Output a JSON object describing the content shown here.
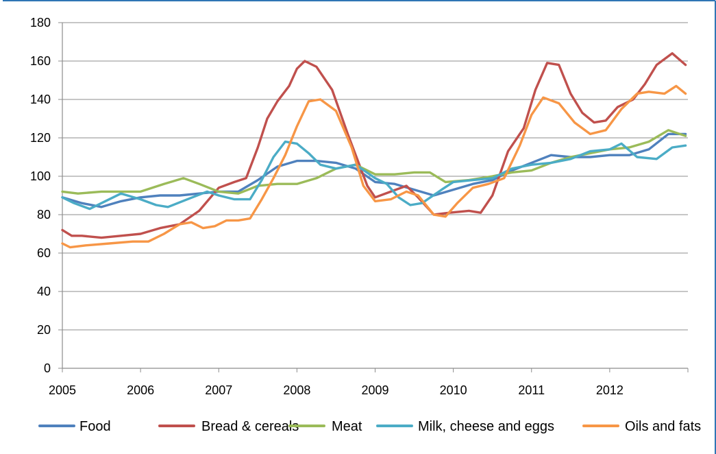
{
  "chart_data": {
    "type": "line",
    "title": "",
    "xlabel": "",
    "ylabel": "",
    "xlim": [
      2005,
      2013
    ],
    "ylim": [
      0,
      180
    ],
    "yticks": [
      0,
      20,
      40,
      60,
      80,
      100,
      120,
      140,
      160,
      180
    ],
    "xticks": [
      2005,
      2006,
      2007,
      2008,
      2009,
      2010,
      2011,
      2012
    ],
    "grid": "horizontal",
    "legend_position": "bottom",
    "series": [
      {
        "name": "Food",
        "color": "#4f81bd",
        "points": [
          [
            2005.0,
            89
          ],
          [
            2005.25,
            86
          ],
          [
            2005.5,
            84
          ],
          [
            2005.75,
            87
          ],
          [
            2006.0,
            89
          ],
          [
            2006.25,
            90
          ],
          [
            2006.5,
            90
          ],
          [
            2006.75,
            91
          ],
          [
            2007.0,
            92
          ],
          [
            2007.25,
            92
          ],
          [
            2007.5,
            98
          ],
          [
            2007.75,
            105
          ],
          [
            2008.0,
            108
          ],
          [
            2008.25,
            108
          ],
          [
            2008.5,
            107
          ],
          [
            2008.75,
            104
          ],
          [
            2009.0,
            97
          ],
          [
            2009.25,
            96
          ],
          [
            2009.5,
            93
          ],
          [
            2009.75,
            90
          ],
          [
            2010.0,
            93
          ],
          [
            2010.25,
            96
          ],
          [
            2010.5,
            98
          ],
          [
            2010.75,
            103
          ],
          [
            2011.0,
            107
          ],
          [
            2011.25,
            111
          ],
          [
            2011.5,
            110
          ],
          [
            2011.75,
            110
          ],
          [
            2012.0,
            111
          ],
          [
            2012.25,
            111
          ],
          [
            2012.5,
            114
          ],
          [
            2012.75,
            122
          ],
          [
            2012.97,
            122
          ]
        ]
      },
      {
        "name": "Bread & cereals",
        "color": "#c0504d",
        "points": [
          [
            2005.0,
            72
          ],
          [
            2005.12,
            69
          ],
          [
            2005.25,
            69
          ],
          [
            2005.5,
            68
          ],
          [
            2005.75,
            69
          ],
          [
            2006.0,
            70
          ],
          [
            2006.25,
            73
          ],
          [
            2006.5,
            75
          ],
          [
            2006.75,
            82
          ],
          [
            2007.0,
            94
          ],
          [
            2007.2,
            97
          ],
          [
            2007.35,
            99
          ],
          [
            2007.5,
            115
          ],
          [
            2007.62,
            130
          ],
          [
            2007.75,
            139
          ],
          [
            2007.9,
            147
          ],
          [
            2008.0,
            156
          ],
          [
            2008.1,
            160
          ],
          [
            2008.25,
            157
          ],
          [
            2008.45,
            145
          ],
          [
            2008.65,
            122
          ],
          [
            2008.9,
            95
          ],
          [
            2009.0,
            89
          ],
          [
            2009.2,
            92
          ],
          [
            2009.4,
            95
          ],
          [
            2009.55,
            89
          ],
          [
            2009.75,
            80
          ],
          [
            2009.95,
            81
          ],
          [
            2010.2,
            82
          ],
          [
            2010.35,
            81
          ],
          [
            2010.5,
            90
          ],
          [
            2010.7,
            113
          ],
          [
            2010.9,
            125
          ],
          [
            2011.05,
            145
          ],
          [
            2011.2,
            159
          ],
          [
            2011.35,
            158
          ],
          [
            2011.5,
            143
          ],
          [
            2011.65,
            133
          ],
          [
            2011.8,
            128
          ],
          [
            2011.95,
            129
          ],
          [
            2012.1,
            136
          ],
          [
            2012.3,
            140
          ],
          [
            2012.45,
            148
          ],
          [
            2012.6,
            158
          ],
          [
            2012.8,
            164
          ],
          [
            2012.97,
            158
          ]
        ]
      },
      {
        "name": "Meat",
        "color": "#9bbb59",
        "points": [
          [
            2005.0,
            92
          ],
          [
            2005.2,
            91
          ],
          [
            2005.5,
            92
          ],
          [
            2005.75,
            92
          ],
          [
            2006.0,
            92
          ],
          [
            2006.3,
            96
          ],
          [
            2006.55,
            99
          ],
          [
            2006.75,
            96
          ],
          [
            2007.0,
            92
          ],
          [
            2007.25,
            91
          ],
          [
            2007.5,
            95
          ],
          [
            2007.75,
            96
          ],
          [
            2008.0,
            96
          ],
          [
            2008.25,
            99
          ],
          [
            2008.5,
            104
          ],
          [
            2008.75,
            106
          ],
          [
            2009.0,
            101
          ],
          [
            2009.25,
            101
          ],
          [
            2009.5,
            102
          ],
          [
            2009.7,
            102
          ],
          [
            2009.9,
            97
          ],
          [
            2010.2,
            98
          ],
          [
            2010.5,
            100
          ],
          [
            2010.75,
            102
          ],
          [
            2011.0,
            103
          ],
          [
            2011.25,
            107
          ],
          [
            2011.5,
            110
          ],
          [
            2011.75,
            112
          ],
          [
            2012.0,
            114
          ],
          [
            2012.25,
            115
          ],
          [
            2012.5,
            118
          ],
          [
            2012.75,
            124
          ],
          [
            2012.97,
            121
          ]
        ]
      },
      {
        "name": "Milk, cheese and eggs",
        "color": "#4bacc6",
        "points": [
          [
            2005.0,
            89
          ],
          [
            2005.15,
            86
          ],
          [
            2005.35,
            83
          ],
          [
            2005.5,
            86
          ],
          [
            2005.75,
            91
          ],
          [
            2006.0,
            88
          ],
          [
            2006.2,
            85
          ],
          [
            2006.35,
            84
          ],
          [
            2006.6,
            88
          ],
          [
            2006.85,
            92
          ],
          [
            2007.0,
            90
          ],
          [
            2007.2,
            88
          ],
          [
            2007.4,
            88
          ],
          [
            2007.55,
            98
          ],
          [
            2007.7,
            110
          ],
          [
            2007.85,
            118
          ],
          [
            2008.0,
            117
          ],
          [
            2008.15,
            112
          ],
          [
            2008.3,
            106
          ],
          [
            2008.5,
            104
          ],
          [
            2008.75,
            106
          ],
          [
            2009.0,
            99
          ],
          [
            2009.15,
            96
          ],
          [
            2009.3,
            89
          ],
          [
            2009.45,
            85
          ],
          [
            2009.6,
            86
          ],
          [
            2009.85,
            93
          ],
          [
            2010.0,
            97
          ],
          [
            2010.25,
            98
          ],
          [
            2010.5,
            99
          ],
          [
            2010.75,
            104
          ],
          [
            2011.0,
            106
          ],
          [
            2011.25,
            107
          ],
          [
            2011.5,
            109
          ],
          [
            2011.75,
            113
          ],
          [
            2012.0,
            114
          ],
          [
            2012.15,
            117
          ],
          [
            2012.35,
            110
          ],
          [
            2012.6,
            109
          ],
          [
            2012.8,
            115
          ],
          [
            2012.97,
            116
          ]
        ]
      },
      {
        "name": "Oils and fats",
        "color": "#f79646",
        "points": [
          [
            2005.0,
            65
          ],
          [
            2005.1,
            63
          ],
          [
            2005.3,
            64
          ],
          [
            2005.6,
            65
          ],
          [
            2005.9,
            66
          ],
          [
            2006.1,
            66
          ],
          [
            2006.3,
            70
          ],
          [
            2006.5,
            75
          ],
          [
            2006.65,
            76
          ],
          [
            2006.8,
            73
          ],
          [
            2006.95,
            74
          ],
          [
            2007.1,
            77
          ],
          [
            2007.25,
            77
          ],
          [
            2007.4,
            78
          ],
          [
            2007.55,
            88
          ],
          [
            2007.7,
            99
          ],
          [
            2007.85,
            111
          ],
          [
            2008.0,
            126
          ],
          [
            2008.15,
            139
          ],
          [
            2008.3,
            140
          ],
          [
            2008.5,
            134
          ],
          [
            2008.7,
            115
          ],
          [
            2008.85,
            95
          ],
          [
            2009.0,
            87
          ],
          [
            2009.2,
            88
          ],
          [
            2009.4,
            92
          ],
          [
            2009.55,
            90
          ],
          [
            2009.75,
            80
          ],
          [
            2009.9,
            79
          ],
          [
            2010.05,
            86
          ],
          [
            2010.25,
            94
          ],
          [
            2010.45,
            96
          ],
          [
            2010.65,
            99
          ],
          [
            2010.85,
            116
          ],
          [
            2011.0,
            132
          ],
          [
            2011.15,
            141
          ],
          [
            2011.35,
            138
          ],
          [
            2011.55,
            128
          ],
          [
            2011.75,
            122
          ],
          [
            2011.95,
            124
          ],
          [
            2012.15,
            135
          ],
          [
            2012.35,
            143
          ],
          [
            2012.5,
            144
          ],
          [
            2012.7,
            143
          ],
          [
            2012.85,
            147
          ],
          [
            2012.97,
            143
          ]
        ]
      }
    ]
  }
}
